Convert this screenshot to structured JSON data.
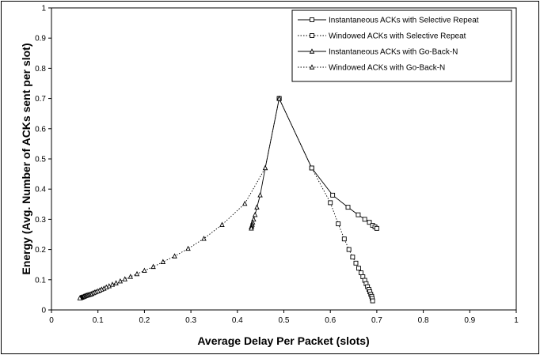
{
  "chart_data": {
    "type": "line",
    "title": "",
    "xlabel": "Average Delay Per Packet (slots)",
    "ylabel": "Energy (Avg. Number of ACKs sent per slot)",
    "xlim": [
      0,
      1
    ],
    "ylim": [
      0,
      1
    ],
    "xticks": [
      "0",
      "0.1",
      "0.2",
      "0.3",
      "0.4",
      "0.5",
      "0.6",
      "0.7",
      "0.8",
      "0.9",
      "1"
    ],
    "yticks": [
      "0",
      "0.1",
      "0.2",
      "0.3",
      "0.4",
      "0.5",
      "0.6",
      "0.7",
      "0.8",
      "0.9",
      "1"
    ],
    "grid": false,
    "legend_position": "top-right",
    "series": [
      {
        "name": "Instantaneous ACKs with Selective Repeat",
        "marker": "square",
        "line": "solid",
        "x": [
          0.49,
          0.56,
          0.605,
          0.638,
          0.66,
          0.674,
          0.684,
          0.691,
          0.696,
          0.7
        ],
        "y": [
          0.7,
          0.47,
          0.38,
          0.34,
          0.315,
          0.3,
          0.29,
          0.28,
          0.275,
          0.27
        ]
      },
      {
        "name": "Windowed ACKs with Selective Repeat",
        "marker": "square",
        "line": "dotted",
        "x": [
          0.49,
          0.56,
          0.6,
          0.617,
          0.63,
          0.64,
          0.648,
          0.655,
          0.661,
          0.666,
          0.67,
          0.674,
          0.677,
          0.68,
          0.683,
          0.685,
          0.687,
          0.689,
          0.69,
          0.691
        ],
        "y": [
          0.7,
          0.47,
          0.355,
          0.285,
          0.235,
          0.2,
          0.175,
          0.155,
          0.138,
          0.123,
          0.11,
          0.098,
          0.087,
          0.077,
          0.068,
          0.06,
          0.052,
          0.045,
          0.038,
          0.03
        ]
      },
      {
        "name": "Instantaneous ACKs with Go-Back-N",
        "marker": "triangle",
        "line": "solid",
        "x": [
          0.49,
          0.46,
          0.449,
          0.442,
          0.438,
          0.435,
          0.433,
          0.432,
          0.431,
          0.43,
          0.43
        ],
        "y": [
          0.7,
          0.47,
          0.38,
          0.34,
          0.315,
          0.3,
          0.29,
          0.283,
          0.278,
          0.274,
          0.27
        ]
      },
      {
        "name": "Windowed ACKs with Go-Back-N",
        "marker": "triangle",
        "line": "dotted",
        "x": [
          0.49,
          0.46,
          0.416,
          0.367,
          0.328,
          0.294,
          0.265,
          0.24,
          0.219,
          0.2,
          0.184,
          0.17,
          0.158,
          0.148,
          0.139,
          0.131,
          0.124,
          0.118,
          0.113,
          0.108,
          0.104,
          0.1,
          0.096,
          0.093,
          0.09,
          0.087,
          0.085,
          0.082,
          0.08,
          0.078,
          0.076,
          0.074,
          0.072,
          0.071,
          0.069,
          0.068,
          0.066,
          0.065,
          0.064,
          0.063,
          0.062,
          0.061
        ],
        "y": [
          0.7,
          0.47,
          0.352,
          0.282,
          0.236,
          0.203,
          0.178,
          0.159,
          0.143,
          0.13,
          0.119,
          0.11,
          0.102,
          0.095,
          0.089,
          0.084,
          0.079,
          0.075,
          0.071,
          0.068,
          0.065,
          0.062,
          0.06,
          0.058,
          0.056,
          0.054,
          0.052,
          0.051,
          0.05,
          0.049,
          0.048,
          0.047,
          0.046,
          0.045,
          0.044,
          0.043,
          0.042,
          0.041,
          0.041,
          0.04,
          0.04,
          0.039
        ]
      }
    ]
  }
}
